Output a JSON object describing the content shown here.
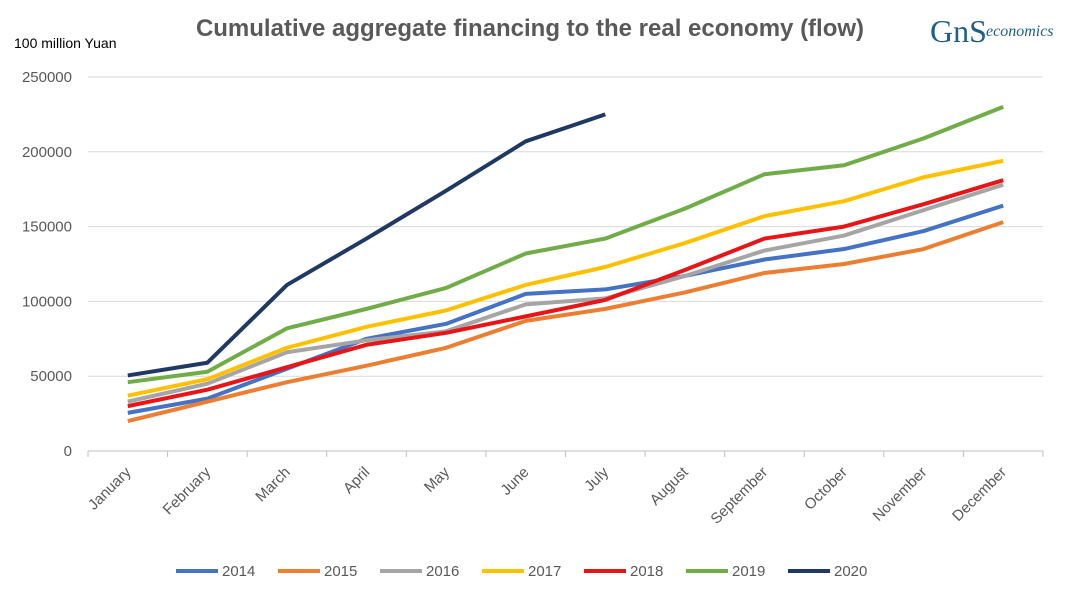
{
  "chart_data": {
    "type": "line",
    "title": "Cumulative aggregate financing to the real economy (flow)",
    "y_axis_label": "100 million Yuan",
    "logo": {
      "mark": "GnS",
      "text": "economics"
    },
    "categories": [
      "January",
      "February",
      "March",
      "April",
      "May",
      "June",
      "July",
      "August",
      "September",
      "October",
      "November",
      "December"
    ],
    "ylim": [
      0,
      250000
    ],
    "yticks": [
      0,
      50000,
      100000,
      150000,
      200000,
      250000
    ],
    "grid": true,
    "legend": "bottom",
    "series": [
      {
        "name": "2014",
        "color": "#4472c4",
        "values": [
          25500,
          35000,
          55000,
          75000,
          85000,
          105000,
          108000,
          117000,
          128000,
          135000,
          147000,
          164000
        ]
      },
      {
        "name": "2015",
        "color": "#ed7d31",
        "values": [
          20000,
          33000,
          46000,
          57000,
          69000,
          87000,
          95000,
          106000,
          119000,
          125000,
          135000,
          153000
        ]
      },
      {
        "name": "2016",
        "color": "#a5a5a5",
        "values": [
          33000,
          45000,
          66000,
          74000,
          80000,
          98000,
          102000,
          117000,
          134000,
          144000,
          161000,
          178000
        ]
      },
      {
        "name": "2017",
        "color": "#ffc000",
        "values": [
          37000,
          48000,
          69000,
          83000,
          94000,
          111000,
          123000,
          139000,
          157000,
          167000,
          183000,
          194000
        ]
      },
      {
        "name": "2018",
        "color": "#e81416",
        "values": [
          30000,
          41000,
          56000,
          71000,
          79000,
          90000,
          101000,
          121000,
          142000,
          150000,
          165000,
          181000
        ]
      },
      {
        "name": "2019",
        "color": "#70ad47",
        "values": [
          46000,
          53000,
          82000,
          95000,
          109000,
          132000,
          142000,
          162000,
          185000,
          191000,
          209000,
          230000
        ]
      },
      {
        "name": "2020",
        "color": "#203864",
        "values": [
          50500,
          59000,
          111000,
          142000,
          174000,
          207000,
          225000,
          null,
          null,
          null,
          null,
          null
        ]
      }
    ]
  }
}
